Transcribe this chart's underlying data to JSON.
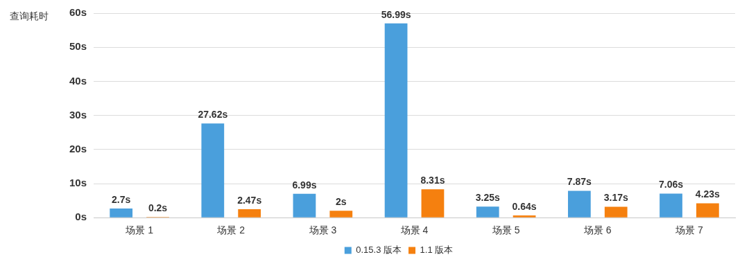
{
  "chart_data": {
    "type": "bar",
    "ylabel": "查询耗时",
    "categories": [
      "场景 1",
      "场景 2",
      "场景 3",
      "场景 4",
      "场景 5",
      "场景 6",
      "场景 7"
    ],
    "series": [
      {
        "name": "0.15.3 版本",
        "color": "#4a9fdc",
        "values": [
          2.7,
          27.62,
          6.99,
          56.99,
          3.25,
          7.87,
          7.06
        ],
        "value_labels": [
          "2.7s",
          "27.62s",
          "6.99s",
          "56.99s",
          "3.25s",
          "7.87s",
          "7.06s"
        ]
      },
      {
        "name": "1.1 版本",
        "color": "#f5800f",
        "values": [
          0.2,
          2.47,
          2,
          8.31,
          0.64,
          3.17,
          4.23
        ],
        "value_labels": [
          "0.2s",
          "2.47s",
          "2s",
          "8.31s",
          "0.64s",
          "3.17s",
          "4.23s"
        ]
      }
    ],
    "ylim": [
      0,
      60
    ],
    "yticks": [
      {
        "value": 0,
        "label": "0s"
      },
      {
        "value": 10,
        "label": "10s"
      },
      {
        "value": 20,
        "label": "20s"
      },
      {
        "value": 30,
        "label": "30s"
      },
      {
        "value": 40,
        "label": "40s"
      },
      {
        "value": 50,
        "label": "50s"
      },
      {
        "value": 60,
        "label": "60s"
      }
    ],
    "grid": "y",
    "legend": "bottom"
  }
}
